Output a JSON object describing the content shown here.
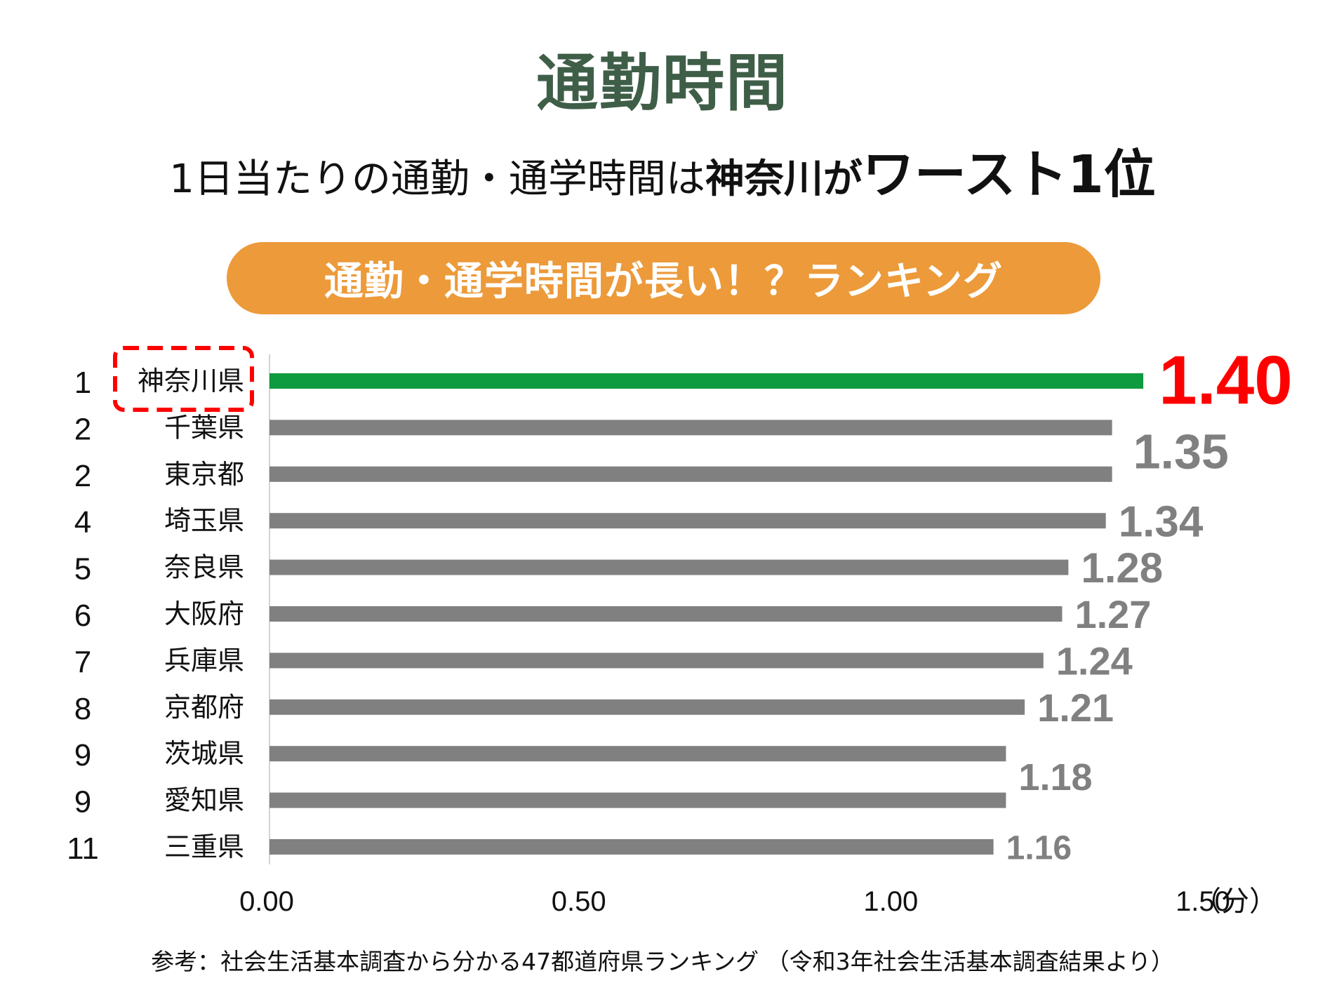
{
  "title": "通勤時間",
  "subtitle": {
    "part1": "1日当たりの通勤・通学時間は",
    "part2": "神奈川が",
    "part3": "ワースト1位"
  },
  "banner": "通勤・通学時間が長い！？ランキング",
  "footnote": "参考：社会生活基本調査から分かる47都道府県ランキング （令和3年社会生活基本調査結果より）",
  "colors": {
    "title": "#3f5e48",
    "banner_bg": "#ec9a3a",
    "highlight_bar": "#0e9a3e",
    "bar": "#808080",
    "highlight_value": "#ff0000",
    "value": "#808080",
    "highlight_box": "#ff0000"
  },
  "chart_data": {
    "type": "bar",
    "orientation": "horizontal",
    "ranks": [
      "1",
      "2",
      "2",
      "4",
      "5",
      "6",
      "7",
      "8",
      "9",
      "9",
      "11"
    ],
    "categories": [
      "神奈川県",
      "千葉県",
      "東京都",
      "埼玉県",
      "奈良県",
      "大阪府",
      "兵庫県",
      "京都府",
      "茨城県",
      "愛知県",
      "三重県"
    ],
    "values": [
      1.4,
      1.35,
      1.35,
      1.34,
      1.28,
      1.27,
      1.24,
      1.21,
      1.18,
      1.18,
      1.16
    ],
    "value_labels": [
      "1.40",
      "1.35",
      "",
      "1.34",
      "1.28",
      "1.27",
      "1.24",
      "1.21",
      "",
      "1.18",
      "1.16"
    ],
    "highlight_index": 0,
    "xlim": [
      0,
      1.5
    ],
    "xticks": [
      "0.00",
      "0.50",
      "1.00",
      "1.50"
    ],
    "unit_label": "（分）",
    "grid": false
  }
}
